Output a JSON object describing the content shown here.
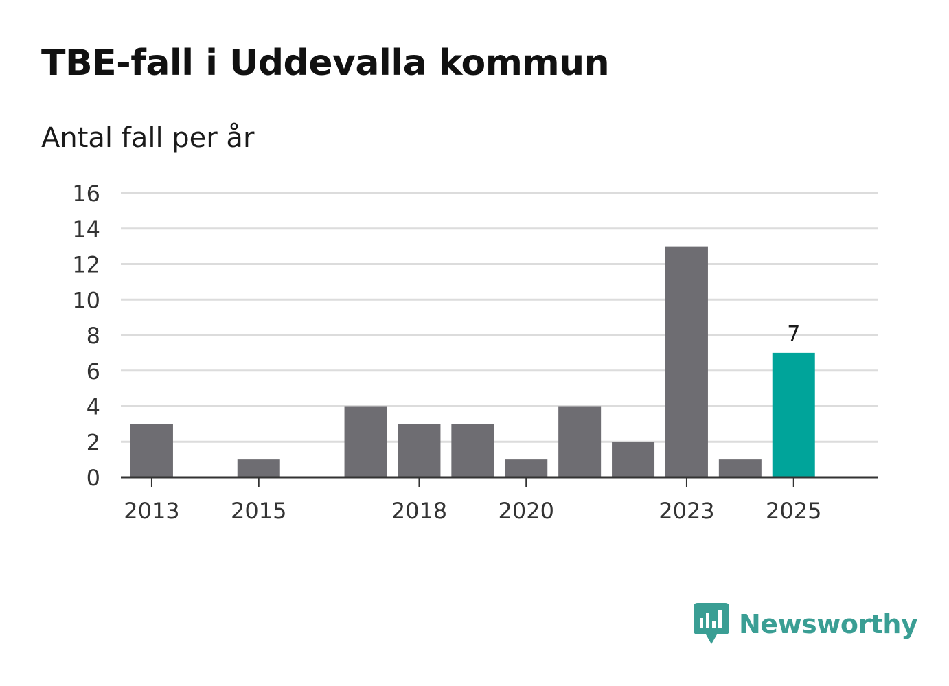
{
  "title": "TBE-fall i Uddevalla kommun",
  "subtitle": "Antal fall per år",
  "brand": {
    "name": "Newsworthy",
    "color": "#3a9e94"
  },
  "colors": {
    "bar": "#6e6d72",
    "highlight": "#00a49a",
    "grid": "#dcdcdc",
    "axis": "#333333",
    "text": "#333333"
  },
  "chart_data": {
    "type": "bar",
    "categories": [
      "2013",
      "2014",
      "2015",
      "2016",
      "2017",
      "2018",
      "2019",
      "2020",
      "2021",
      "2022",
      "2023",
      "2024",
      "2025"
    ],
    "values": [
      3,
      0,
      1,
      0,
      4,
      3,
      3,
      1,
      4,
      2,
      13,
      1,
      7
    ],
    "highlight": "2025",
    "data_labels": [
      {
        "category": "2025",
        "text": "7"
      }
    ],
    "x_tick_labels": [
      "2013",
      "2015",
      "2018",
      "2020",
      "2023",
      "2025"
    ],
    "y_ticks": [
      0,
      2,
      4,
      6,
      8,
      10,
      12,
      14,
      16
    ],
    "ylim": [
      0,
      16
    ],
    "xlabel": "",
    "ylabel": "",
    "grid": true,
    "legend": "none"
  }
}
